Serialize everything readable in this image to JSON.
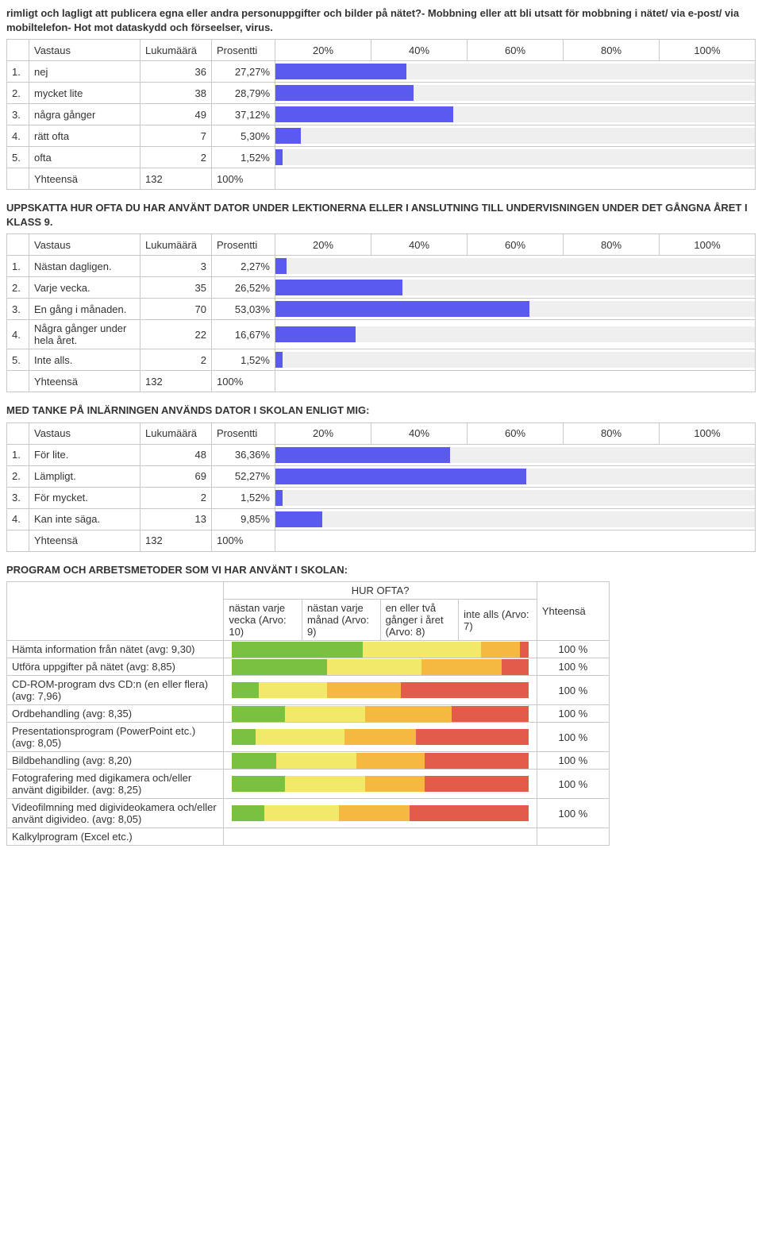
{
  "intro": "rimligt och lagligt att publicera egna eller andra personuppgifter och bilder på nätet?- Mobbning eller att bli utsatt för mobbning i nätet/ via e-post/ via mobiltelefon- Hot mot dataskydd och förseelser, virus.",
  "headers": {
    "vastaus": "Vastaus",
    "lukumaara": "Lukumäärä",
    "prosentti": "Prosentti",
    "p20": "20%",
    "p40": "40%",
    "p60": "60%",
    "p80": "80%",
    "p100": "100%",
    "yhteensa": "Yhteensä",
    "total_n": "132",
    "total_pct": "100%",
    "hur_ofta": "HUR OFTA?",
    "col_a": "nästan varje vecka (Arvo: 10)",
    "col_b": "nästan varje månad (Arvo: 9)",
    "col_c": "en eller två gånger i året (Arvo: 8)",
    "col_d": "inte alls (Arvo: 7)",
    "col_y": "Yhteensä",
    "row_tot": "100 %"
  },
  "q1": {
    "title": null,
    "rows": [
      {
        "n": "1.",
        "a": "nej",
        "lk": "36",
        "pr": "27,27%",
        "pct": 27.27
      },
      {
        "n": "2.",
        "a": "mycket lite",
        "lk": "38",
        "pr": "28,79%",
        "pct": 28.79
      },
      {
        "n": "3.",
        "a": "några gånger",
        "lk": "49",
        "pr": "37,12%",
        "pct": 37.12
      },
      {
        "n": "4.",
        "a": "rätt ofta",
        "lk": "7",
        "pr": "5,30%",
        "pct": 5.3
      },
      {
        "n": "5.",
        "a": "ofta",
        "lk": "2",
        "pr": "1,52%",
        "pct": 1.52
      }
    ]
  },
  "q2": {
    "title": "UPPSKATTA HUR OFTA DU HAR ANVÄNT DATOR UNDER LEKTIONERNA ELLER I ANSLUTNING TILL UNDERVISNINGEN UNDER DET GÅNGNA ÅRET I KLASS 9.",
    "rows": [
      {
        "n": "1.",
        "a": "Nästan dagligen.",
        "lk": "3",
        "pr": "2,27%",
        "pct": 2.27
      },
      {
        "n": "2.",
        "a": "Varje vecka.",
        "lk": "35",
        "pr": "26,52%",
        "pct": 26.52
      },
      {
        "n": "3.",
        "a": "En gång i månaden.",
        "lk": "70",
        "pr": "53,03%",
        "pct": 53.03
      },
      {
        "n": "4.",
        "a": "Några gånger under hela året.",
        "lk": "22",
        "pr": "16,67%",
        "pct": 16.67
      },
      {
        "n": "5.",
        "a": "Inte alls.",
        "lk": "2",
        "pr": "1,52%",
        "pct": 1.52
      }
    ]
  },
  "q3": {
    "title": "MED TANKE PÅ INLÄRNINGEN ANVÄNDS DATOR I SKOLAN ENLIGT MIG:",
    "rows": [
      {
        "n": "1.",
        "a": "För lite.",
        "lk": "48",
        "pr": "36,36%",
        "pct": 36.36
      },
      {
        "n": "2.",
        "a": "Lämpligt.",
        "lk": "69",
        "pr": "52,27%",
        "pct": 52.27
      },
      {
        "n": "3.",
        "a": "För mycket.",
        "lk": "2",
        "pr": "1,52%",
        "pct": 1.52
      },
      {
        "n": "4.",
        "a": "Kan inte säga.",
        "lk": "13",
        "pr": "9,85%",
        "pct": 9.85
      }
    ]
  },
  "q4": {
    "title": "PROGRAM OCH ARBETSMETODER SOM VI HAR ANVÄNT I SKOLAN:",
    "rows": [
      {
        "label": "Hämta information från nätet (avg: 9,30)",
        "seg": [
          44,
          40,
          13,
          3
        ]
      },
      {
        "label": "Utföra uppgifter på nätet (avg: 8,85)",
        "seg": [
          32,
          32,
          27,
          9
        ]
      },
      {
        "label": "CD-ROM-program dvs CD:n (en eller flera) (avg: 7,96)",
        "seg": [
          9,
          23,
          25,
          43
        ]
      },
      {
        "label": "Ordbehandling (avg: 8,35)",
        "seg": [
          18,
          27,
          29,
          26
        ]
      },
      {
        "label": "Presentationsprogram (PowerPoint etc.) (avg: 8,05)",
        "seg": [
          8,
          30,
          24,
          38
        ]
      },
      {
        "label": "Bildbehandling (avg: 8,20)",
        "seg": [
          15,
          27,
          23,
          35
        ]
      },
      {
        "label": "Fotografering med digikamera och/eller använt digibilder. (avg: 8,25)",
        "seg": [
          18,
          27,
          20,
          35
        ]
      },
      {
        "label": "Videofilmning med digivideokamera och/eller använt digivideo. (avg: 8,05)",
        "seg": [
          11,
          25,
          24,
          40
        ]
      }
    ],
    "last_label": "Kalkylprogram (Excel etc.)"
  },
  "colors": {
    "bar": "#5a5af0",
    "track": "#efefef",
    "seg": [
      "#7ac142",
      "#f2e96b",
      "#f5b942",
      "#e25b4b"
    ]
  }
}
